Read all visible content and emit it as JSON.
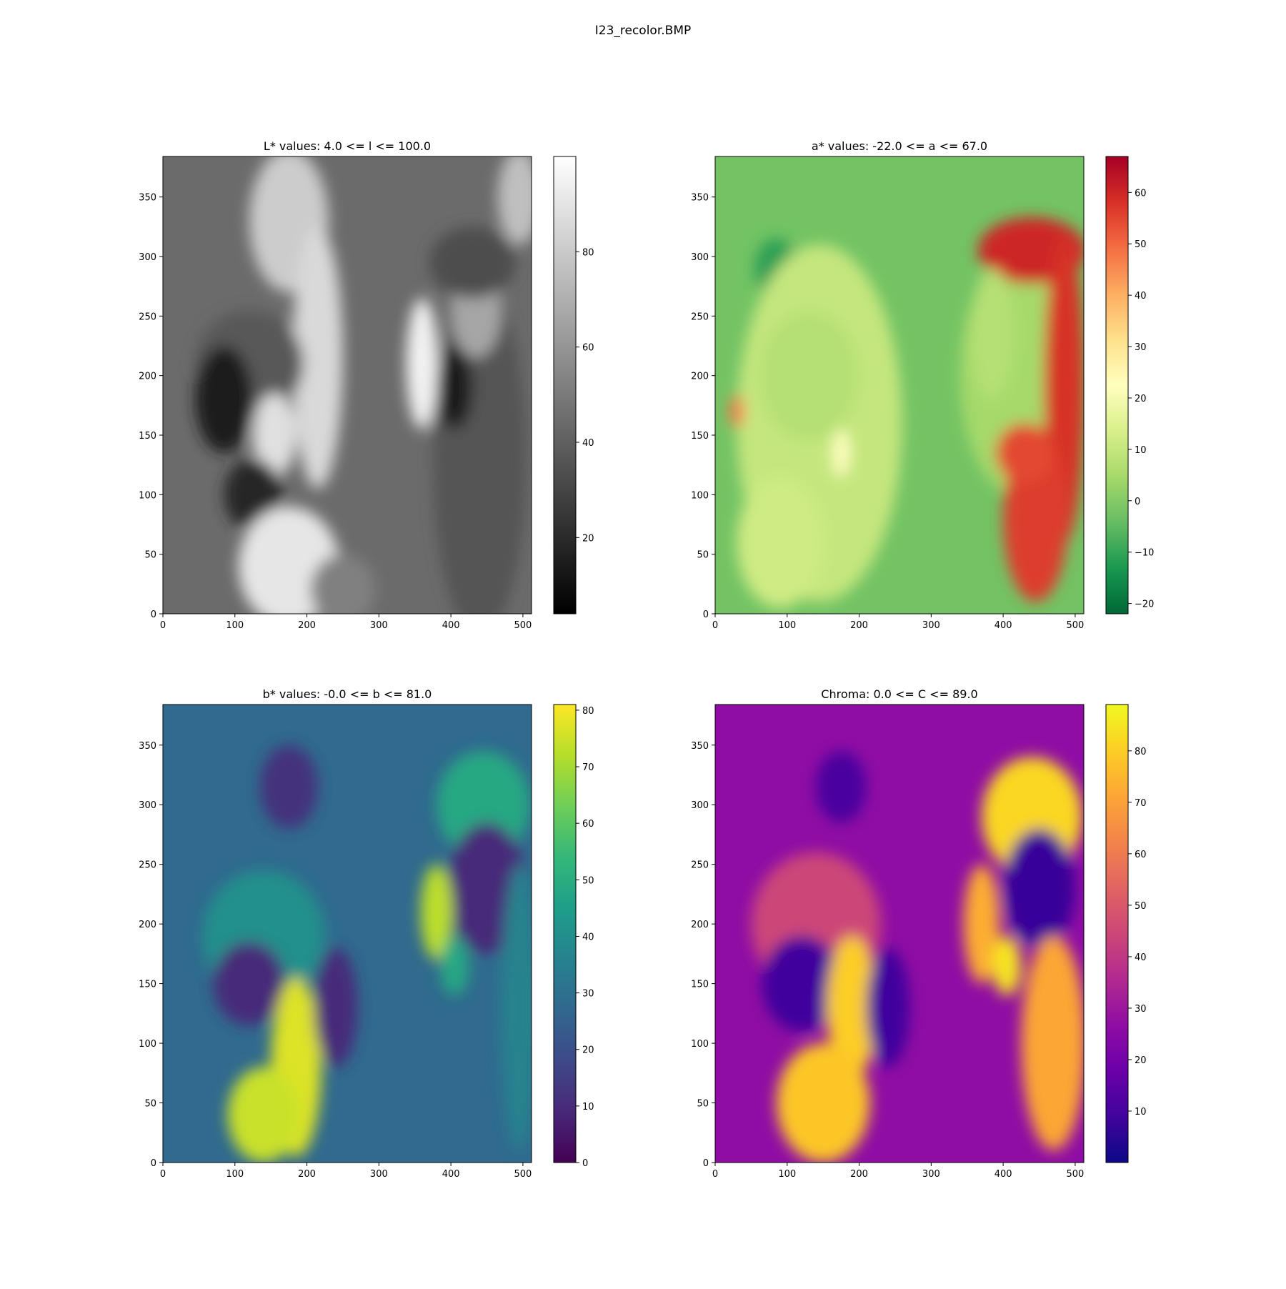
{
  "figure": {
    "suptitle": "I23_recolor.BMP"
  },
  "chart_data": [
    {
      "type": "heatmap",
      "title": "L* values: 4.0 <= l <= 100.0",
      "xlabel": "",
      "ylabel": "",
      "xlim": [
        0,
        512
      ],
      "ylim": [
        0,
        384
      ],
      "xticks": [
        0,
        100,
        200,
        300,
        400,
        500
      ],
      "yticks": [
        0,
        50,
        100,
        150,
        200,
        250,
        300,
        350
      ],
      "colormap": "gray",
      "colorbar": {
        "range": [
          4,
          100
        ],
        "ticks": [
          20,
          40,
          60,
          80
        ]
      },
      "value_range": [
        4.0,
        100.0
      ]
    },
    {
      "type": "heatmap",
      "title": "a* values: -22.0 <= a <= 67.0",
      "xlabel": "",
      "ylabel": "",
      "xlim": [
        0,
        512
      ],
      "ylim": [
        0,
        384
      ],
      "xticks": [
        0,
        100,
        200,
        300,
        400,
        500
      ],
      "yticks": [
        0,
        50,
        100,
        150,
        200,
        250,
        300,
        350
      ],
      "colormap": "RdYlGn_r",
      "colorbar": {
        "range": [
          -22,
          67
        ],
        "ticks": [
          -20,
          -10,
          0,
          10,
          20,
          30,
          40,
          50,
          60
        ]
      },
      "value_range": [
        -22.0,
        67.0
      ]
    },
    {
      "type": "heatmap",
      "title": "b* values: -0.0 <= b <= 81.0",
      "xlabel": "",
      "ylabel": "",
      "xlim": [
        0,
        512
      ],
      "ylim": [
        0,
        384
      ],
      "xticks": [
        0,
        100,
        200,
        300,
        400,
        500
      ],
      "yticks": [
        0,
        50,
        100,
        150,
        200,
        250,
        300,
        350
      ],
      "colormap": "viridis",
      "colorbar": {
        "range": [
          0,
          81
        ],
        "ticks": [
          0,
          10,
          20,
          30,
          40,
          50,
          60,
          70,
          80
        ]
      },
      "value_range": [
        0.0,
        81.0
      ]
    },
    {
      "type": "heatmap",
      "title": "Chroma: 0.0 <= C <= 89.0",
      "xlabel": "",
      "ylabel": "",
      "xlim": [
        0,
        512
      ],
      "ylim": [
        0,
        384
      ],
      "xticks": [
        0,
        100,
        200,
        300,
        400,
        500
      ],
      "yticks": [
        0,
        50,
        100,
        150,
        200,
        250,
        300,
        350
      ],
      "colormap": "plasma",
      "colorbar": {
        "range": [
          0,
          89
        ],
        "ticks": [
          10,
          20,
          30,
          40,
          50,
          60,
          70,
          80
        ]
      },
      "value_range": [
        0.0,
        89.0
      ]
    }
  ]
}
